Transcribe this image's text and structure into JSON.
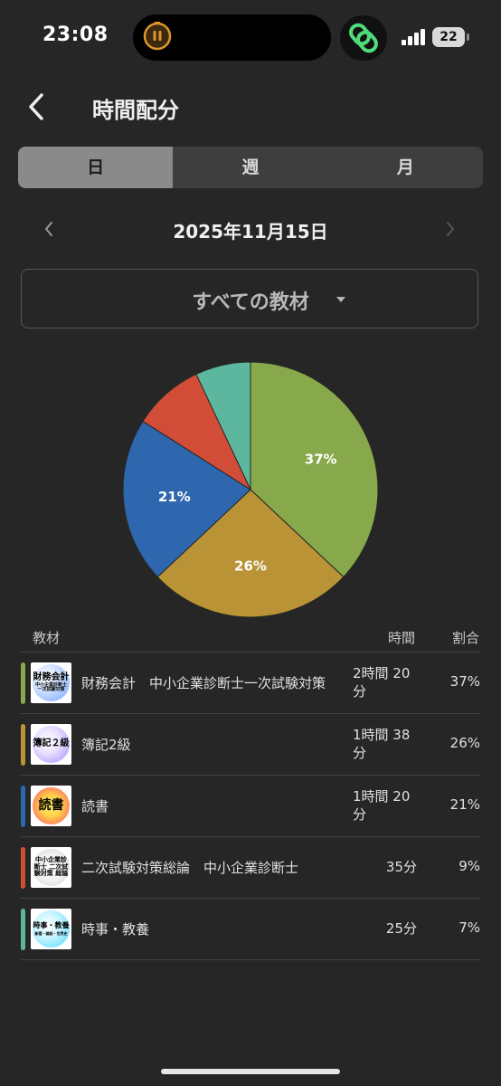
{
  "status_bar": {
    "time": "23:08",
    "battery": "22"
  },
  "header": {
    "title": "時間配分"
  },
  "tabs": [
    {
      "label": "日",
      "active": true
    },
    {
      "label": "週",
      "active": false
    },
    {
      "label": "月",
      "active": false
    }
  ],
  "date": "2025年11月15日",
  "filter": {
    "selected": "すべての教材"
  },
  "chart_data": {
    "type": "pie",
    "slices": [
      {
        "name": "財務会計　中小企業診断士一次試験対策",
        "value": 37,
        "label": "37%",
        "color": "#87a94b"
      },
      {
        "name": "簿記2級",
        "value": 26,
        "label": "26%",
        "color": "#b99336"
      },
      {
        "name": "読書",
        "value": 21,
        "label": "21%",
        "color": "#2e67ae"
      },
      {
        "name": "二次試験対策総論　中小企業診断士",
        "value": 9,
        "label": "",
        "color": "#d24d37"
      },
      {
        "name": "時事・教養",
        "value": 7,
        "label": "",
        "color": "#5db79f"
      }
    ]
  },
  "table": {
    "headers": {
      "name": "教材",
      "time": "時間",
      "ratio": "割合"
    },
    "rows": [
      {
        "name": "財務会計　中小企業診断士一次試験対策",
        "time": "2時間 20分",
        "ratio": "37%",
        "color": "#87a94b",
        "thumb": "財務会計",
        "thumb_sub": "中小企業診断士 一次試験対策"
      },
      {
        "name": "簿記2級",
        "time": "1時間 38分",
        "ratio": "26%",
        "color": "#b99336",
        "thumb": "簿記２級",
        "thumb_sub": ""
      },
      {
        "name": "読書",
        "time": "1時間 20分",
        "ratio": "21%",
        "color": "#2e67ae",
        "thumb": "読書",
        "thumb_sub": ""
      },
      {
        "name": "二次試験対策総論　中小企業診断士",
        "time": "35分",
        "ratio": "9%",
        "color": "#d24d37",
        "thumb": "中小企業診断士 二次試験対策 総論",
        "thumb_sub": ""
      },
      {
        "name": "時事・教養",
        "time": "25分",
        "ratio": "7%",
        "color": "#5db79f",
        "thumb": "時事・教養",
        "thumb_sub": "新聞・雑誌・世界史"
      }
    ]
  }
}
